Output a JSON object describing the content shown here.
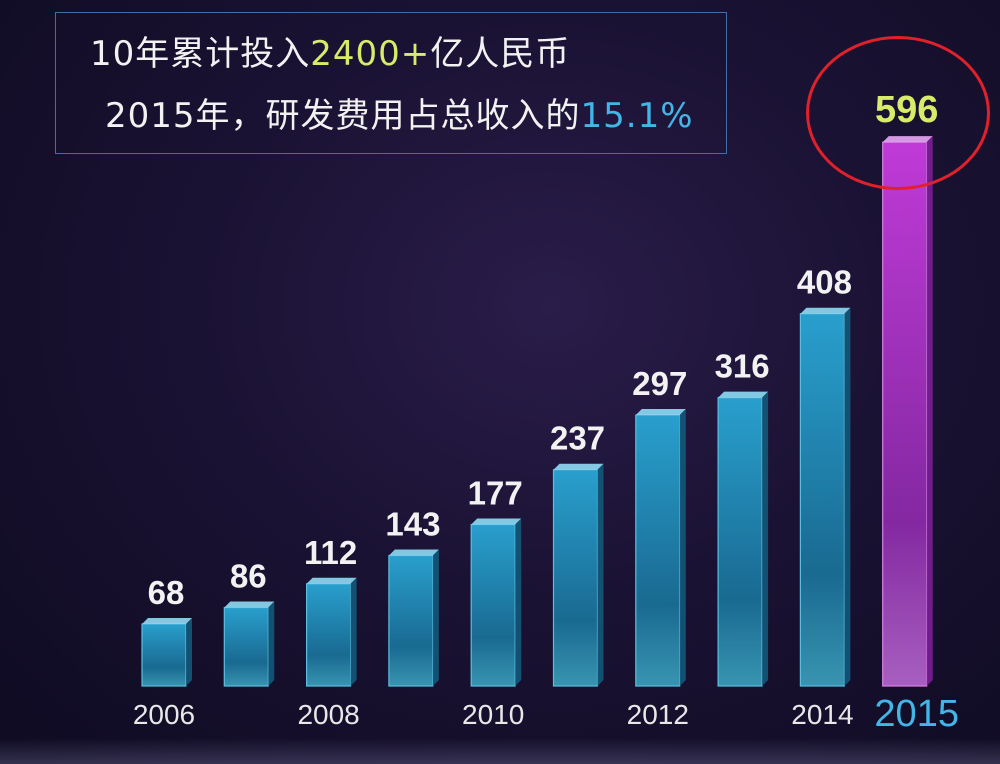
{
  "headline": {
    "line1_prefix": "10年累计投入",
    "line1_amount": "2400+",
    "line1_suffix": "亿人民币",
    "line2_prefix": "2015年，研发费用占总收入的",
    "line2_percent": "15.1%"
  },
  "colors": {
    "bar": "#1f8fb8",
    "bar_highlight": "#b02fd0",
    "accent_green": "#d8ec6a",
    "accent_blue": "#43b6e8",
    "circle": "#e0202a"
  },
  "chart_data": {
    "type": "bar",
    "categories": [
      "2006",
      "2007",
      "2008",
      "2009",
      "2010",
      "2011",
      "2012",
      "2013",
      "2014",
      "2015"
    ],
    "values": [
      68,
      86,
      112,
      143,
      177,
      237,
      297,
      316,
      408,
      596
    ],
    "value_labels": [
      "68",
      "86",
      "112",
      "143",
      "177",
      "237",
      "297",
      "316",
      "408",
      "596"
    ],
    "x_tick_labels": [
      "2006",
      "",
      "2008",
      "",
      "2010",
      "",
      "2012",
      "",
      "2014",
      "2015"
    ],
    "highlight_index": 9,
    "title": "",
    "xlabel": "",
    "ylabel": "",
    "grid": false
  }
}
